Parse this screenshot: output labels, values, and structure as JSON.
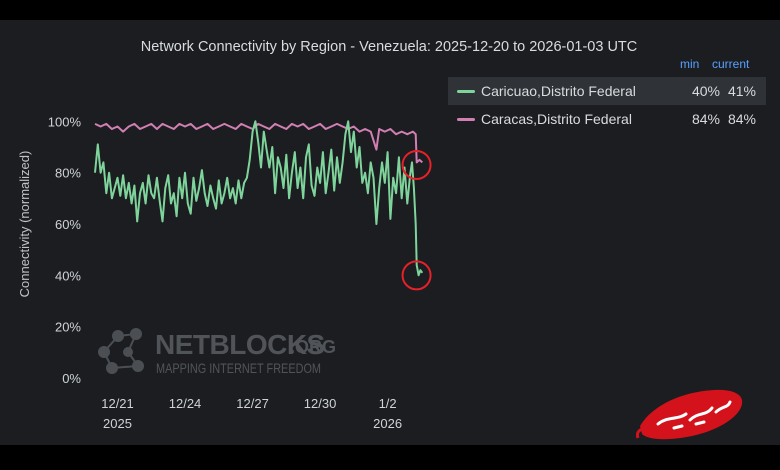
{
  "chart_data": {
    "type": "line",
    "title": "Network Connectivity by Region - Venezuela: 2025-12-20 to 2026-01-03 UTC",
    "ylabel": "Connectivity (normalized)",
    "xlabel": "",
    "ylim": [
      0,
      120
    ],
    "y_ticks": [
      "0%",
      "20%",
      "40%",
      "60%",
      "80%",
      "100%"
    ],
    "y_tick_values": [
      0,
      20,
      40,
      60,
      80,
      100
    ],
    "x_range": [
      "2025-12-20T00:00",
      "2026-01-03T18:00"
    ],
    "x_ticks": [
      {
        "date": "2025-12-21",
        "label": "12/21",
        "sublabel": "2025"
      },
      {
        "date": "2025-12-24",
        "label": "12/24",
        "sublabel": ""
      },
      {
        "date": "2025-12-27",
        "label": "12/27",
        "sublabel": ""
      },
      {
        "date": "2025-12-30",
        "label": "12/30",
        "sublabel": ""
      },
      {
        "date": "2026-01-02",
        "label": "1/2",
        "sublabel": "2026"
      }
    ],
    "grid": false,
    "legend_position": "top-right",
    "legend_header": {
      "min": "min",
      "current": "current"
    },
    "series": [
      {
        "name": "Caricuao,Distrito Federal",
        "color": "#7fd49c",
        "min": "40%",
        "current": "41%",
        "points": [
          [
            "2025-12-20T00:00",
            80
          ],
          [
            "2025-12-20T03:00",
            91
          ],
          [
            "2025-12-20T06:00",
            80
          ],
          [
            "2025-12-20T09:00",
            84
          ],
          [
            "2025-12-20T12:00",
            72
          ],
          [
            "2025-12-20T15:00",
            80
          ],
          [
            "2025-12-20T18:00",
            70
          ],
          [
            "2025-12-20T21:00",
            74
          ],
          [
            "2025-12-21T00:00",
            78
          ],
          [
            "2025-12-21T03:00",
            71
          ],
          [
            "2025-12-21T06:00",
            79
          ],
          [
            "2025-12-21T09:00",
            70
          ],
          [
            "2025-12-21T12:00",
            76
          ],
          [
            "2025-12-21T15:00",
            68
          ],
          [
            "2025-12-21T18:00",
            75
          ],
          [
            "2025-12-21T21:00",
            61
          ],
          [
            "2025-12-22T00:00",
            72
          ],
          [
            "2025-12-22T03:00",
            76
          ],
          [
            "2025-12-22T06:00",
            68
          ],
          [
            "2025-12-22T09:00",
            79
          ],
          [
            "2025-12-22T12:00",
            72
          ],
          [
            "2025-12-22T15:00",
            70
          ],
          [
            "2025-12-22T18:00",
            78
          ],
          [
            "2025-12-22T21:00",
            69
          ],
          [
            "2025-12-23T00:00",
            61
          ],
          [
            "2025-12-23T03:00",
            74
          ],
          [
            "2025-12-23T06:00",
            79
          ],
          [
            "2025-12-23T09:00",
            68
          ],
          [
            "2025-12-23T12:00",
            72
          ],
          [
            "2025-12-23T15:00",
            63
          ],
          [
            "2025-12-23T18:00",
            78
          ],
          [
            "2025-12-23T21:00",
            70
          ],
          [
            "2025-12-24T00:00",
            80
          ],
          [
            "2025-12-24T03:00",
            68
          ],
          [
            "2025-12-24T06:00",
            64
          ],
          [
            "2025-12-24T09:00",
            78
          ],
          [
            "2025-12-24T12:00",
            69
          ],
          [
            "2025-12-24T15:00",
            74
          ],
          [
            "2025-12-24T18:00",
            81
          ],
          [
            "2025-12-24T21:00",
            72
          ],
          [
            "2025-12-25T00:00",
            67
          ],
          [
            "2025-12-25T03:00",
            75
          ],
          [
            "2025-12-25T06:00",
            70
          ],
          [
            "2025-12-25T09:00",
            66
          ],
          [
            "2025-12-25T12:00",
            77
          ],
          [
            "2025-12-25T15:00",
            68
          ],
          [
            "2025-12-25T18:00",
            72
          ],
          [
            "2025-12-25T21:00",
            78
          ],
          [
            "2025-12-26T00:00",
            70
          ],
          [
            "2025-12-26T03:00",
            74
          ],
          [
            "2025-12-26T06:00",
            68
          ],
          [
            "2025-12-26T09:00",
            77
          ],
          [
            "2025-12-26T12:00",
            70
          ],
          [
            "2025-12-26T15:00",
            76
          ],
          [
            "2025-12-26T18:00",
            78
          ],
          [
            "2025-12-26T21:00",
            85
          ],
          [
            "2025-12-27T00:00",
            96
          ],
          [
            "2025-12-27T03:00",
            100
          ],
          [
            "2025-12-27T06:00",
            92
          ],
          [
            "2025-12-27T09:00",
            82
          ],
          [
            "2025-12-27T12:00",
            96
          ],
          [
            "2025-12-27T15:00",
            89
          ],
          [
            "2025-12-27T18:00",
            82
          ],
          [
            "2025-12-27T21:00",
            90
          ],
          [
            "2025-12-28T00:00",
            72
          ],
          [
            "2025-12-28T03:00",
            86
          ],
          [
            "2025-12-28T06:00",
            82
          ],
          [
            "2025-12-28T09:00",
            74
          ],
          [
            "2025-12-28T12:00",
            87
          ],
          [
            "2025-12-28T15:00",
            70
          ],
          [
            "2025-12-28T18:00",
            80
          ],
          [
            "2025-12-28T21:00",
            88
          ],
          [
            "2025-12-29T00:00",
            74
          ],
          [
            "2025-12-29T03:00",
            82
          ],
          [
            "2025-12-29T06:00",
            70
          ],
          [
            "2025-12-29T09:00",
            86
          ],
          [
            "2025-12-29T12:00",
            91
          ],
          [
            "2025-12-29T15:00",
            75
          ],
          [
            "2025-12-29T18:00",
            71
          ],
          [
            "2025-12-29T21:00",
            82
          ],
          [
            "2025-12-30T00:00",
            76
          ],
          [
            "2025-12-30T03:00",
            88
          ],
          [
            "2025-12-30T06:00",
            72
          ],
          [
            "2025-12-30T09:00",
            80
          ],
          [
            "2025-12-30T12:00",
            89
          ],
          [
            "2025-12-30T15:00",
            73
          ],
          [
            "2025-12-30T18:00",
            86
          ],
          [
            "2025-12-30T21:00",
            76
          ],
          [
            "2025-12-31T00:00",
            84
          ],
          [
            "2025-12-31T03:00",
            95
          ],
          [
            "2025-12-31T06:00",
            100
          ],
          [
            "2025-12-31T09:00",
            88
          ],
          [
            "2025-12-31T12:00",
            96
          ],
          [
            "2025-12-31T15:00",
            82
          ],
          [
            "2025-12-31T18:00",
            90
          ],
          [
            "2025-12-31T21:00",
            76
          ],
          [
            "2026-01-01T00:00",
            80
          ],
          [
            "2026-01-01T03:00",
            72
          ],
          [
            "2026-01-01T06:00",
            84
          ],
          [
            "2026-01-01T09:00",
            78
          ],
          [
            "2026-01-01T12:00",
            60
          ],
          [
            "2026-01-01T15:00",
            74
          ],
          [
            "2026-01-01T18:00",
            84
          ],
          [
            "2026-01-01T21:00",
            76
          ],
          [
            "2026-01-02T00:00",
            88
          ],
          [
            "2026-01-02T03:00",
            62
          ],
          [
            "2026-01-02T06:00",
            78
          ],
          [
            "2026-01-02T09:00",
            72
          ],
          [
            "2026-01-02T12:00",
            86
          ],
          [
            "2026-01-02T15:00",
            70
          ],
          [
            "2026-01-02T18:00",
            82
          ],
          [
            "2026-01-02T21:00",
            68
          ],
          [
            "2026-01-03T00:00",
            79
          ],
          [
            "2026-01-03T02:00",
            84
          ],
          [
            "2026-01-03T04:00",
            74
          ],
          [
            "2026-01-03T06:00",
            60
          ],
          [
            "2026-01-03T07:00",
            44
          ],
          [
            "2026-01-03T09:00",
            40
          ],
          [
            "2026-01-03T11:00",
            42
          ],
          [
            "2026-01-03T13:00",
            41
          ]
        ]
      },
      {
        "name": "Caracas,Distrito Federal",
        "color": "#d27fb4",
        "min": "84%",
        "current": "84%",
        "points": [
          [
            "2025-12-20T00:00",
            99
          ],
          [
            "2025-12-20T06:00",
            98
          ],
          [
            "2025-12-20T12:00",
            99
          ],
          [
            "2025-12-20T18:00",
            97
          ],
          [
            "2025-12-21T00:00",
            98
          ],
          [
            "2025-12-21T06:00",
            96
          ],
          [
            "2025-12-21T12:00",
            98
          ],
          [
            "2025-12-21T18:00",
            99
          ],
          [
            "2025-12-22T00:00",
            97
          ],
          [
            "2025-12-22T06:00",
            98
          ],
          [
            "2025-12-22T12:00",
            99
          ],
          [
            "2025-12-22T18:00",
            97
          ],
          [
            "2025-12-23T00:00",
            99
          ],
          [
            "2025-12-23T06:00",
            98
          ],
          [
            "2025-12-23T12:00",
            97
          ],
          [
            "2025-12-23T18:00",
            99
          ],
          [
            "2025-12-24T00:00",
            98
          ],
          [
            "2025-12-24T06:00",
            99
          ],
          [
            "2025-12-24T12:00",
            97
          ],
          [
            "2025-12-24T18:00",
            98
          ],
          [
            "2025-12-25T00:00",
            99
          ],
          [
            "2025-12-25T06:00",
            97
          ],
          [
            "2025-12-25T12:00",
            98
          ],
          [
            "2025-12-25T18:00",
            99
          ],
          [
            "2025-12-26T00:00",
            98
          ],
          [
            "2025-12-26T06:00",
            97
          ],
          [
            "2025-12-26T12:00",
            99
          ],
          [
            "2025-12-26T18:00",
            98
          ],
          [
            "2025-12-27T00:00",
            97
          ],
          [
            "2025-12-27T06:00",
            99
          ],
          [
            "2025-12-27T12:00",
            98
          ],
          [
            "2025-12-27T18:00",
            97
          ],
          [
            "2025-12-28T00:00",
            99
          ],
          [
            "2025-12-28T06:00",
            98
          ],
          [
            "2025-12-28T12:00",
            97
          ],
          [
            "2025-12-28T18:00",
            99
          ],
          [
            "2025-12-29T00:00",
            98
          ],
          [
            "2025-12-29T06:00",
            99
          ],
          [
            "2025-12-29T12:00",
            97
          ],
          [
            "2025-12-29T18:00",
            98
          ],
          [
            "2025-12-30T00:00",
            99
          ],
          [
            "2025-12-30T06:00",
            97
          ],
          [
            "2025-12-30T12:00",
            98
          ],
          [
            "2025-12-30T18:00",
            99
          ],
          [
            "2025-12-31T00:00",
            98
          ],
          [
            "2025-12-31T06:00",
            97
          ],
          [
            "2025-12-31T12:00",
            98
          ],
          [
            "2025-12-31T18:00",
            96
          ],
          [
            "2026-01-01T00:00",
            97
          ],
          [
            "2026-01-01T06:00",
            96
          ],
          [
            "2026-01-01T12:00",
            89
          ],
          [
            "2026-01-01T15:00",
            97
          ],
          [
            "2026-01-01T21:00",
            96
          ],
          [
            "2026-01-02T03:00",
            97
          ],
          [
            "2026-01-02T09:00",
            95
          ],
          [
            "2026-01-02T15:00",
            96
          ],
          [
            "2026-01-02T21:00",
            95
          ],
          [
            "2026-01-03T03:00",
            96
          ],
          [
            "2026-01-03T06:00",
            95
          ],
          [
            "2026-01-03T07:00",
            84
          ],
          [
            "2026-01-03T10:00",
            85
          ],
          [
            "2026-01-03T13:00",
            84
          ]
        ]
      }
    ],
    "annotations": [
      {
        "type": "circle",
        "color": "#e8202a",
        "target_x": "2026-01-03T09:00",
        "target_y": 83
      },
      {
        "type": "circle",
        "color": "#e8202a",
        "target_x": "2026-01-03T09:00",
        "target_y": 40
      }
    ]
  },
  "watermark": {
    "logo_name": "netblocks-logo",
    "brand": "NETBLOCKS",
    "domain": ".ORG",
    "tagline": "MAPPING INTERNET FREEDOM"
  },
  "badge": {
    "logo_name": "kalbeh-logo",
    "color": "#d3121c",
    "text": "کلبه"
  }
}
